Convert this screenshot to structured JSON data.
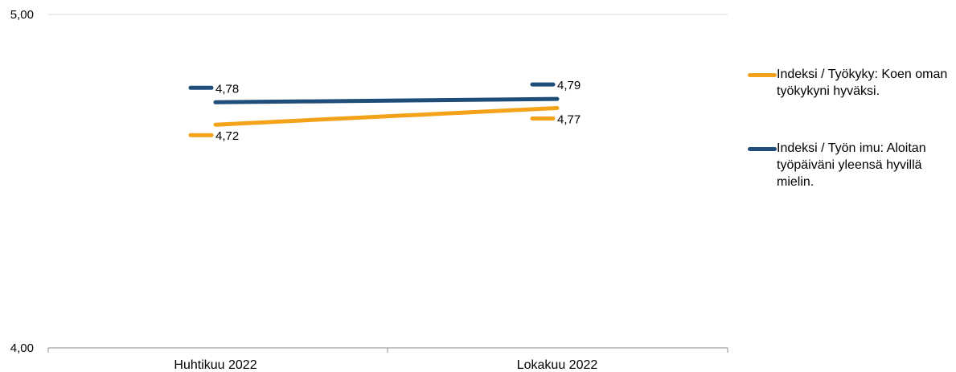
{
  "chart_data": {
    "type": "line",
    "categories": [
      "Huhtikuu 2022",
      "Lokakuu 2022"
    ],
    "series": [
      {
        "name": "Indeksi / Työkyky: Koen oman työkykyni hyväksi.",
        "values": [
          4.72,
          4.77
        ],
        "value_labels": [
          "4,72",
          "4,77"
        ],
        "color": "#F5A21B"
      },
      {
        "name": "Indeksi / Työn imu: Aloitan työpäiväni yleensä hyvillä mielin.",
        "values": [
          4.78,
          4.79
        ],
        "value_labels": [
          "4,78",
          "4,79"
        ],
        "color": "#1F4E79"
      }
    ],
    "ylim": [
      4.0,
      5.0
    ],
    "y_tick_labels": [
      "5,00",
      "4,00"
    ],
    "title": "",
    "xlabel": "",
    "ylabel": "",
    "grid": true,
    "legend_position": "right"
  }
}
